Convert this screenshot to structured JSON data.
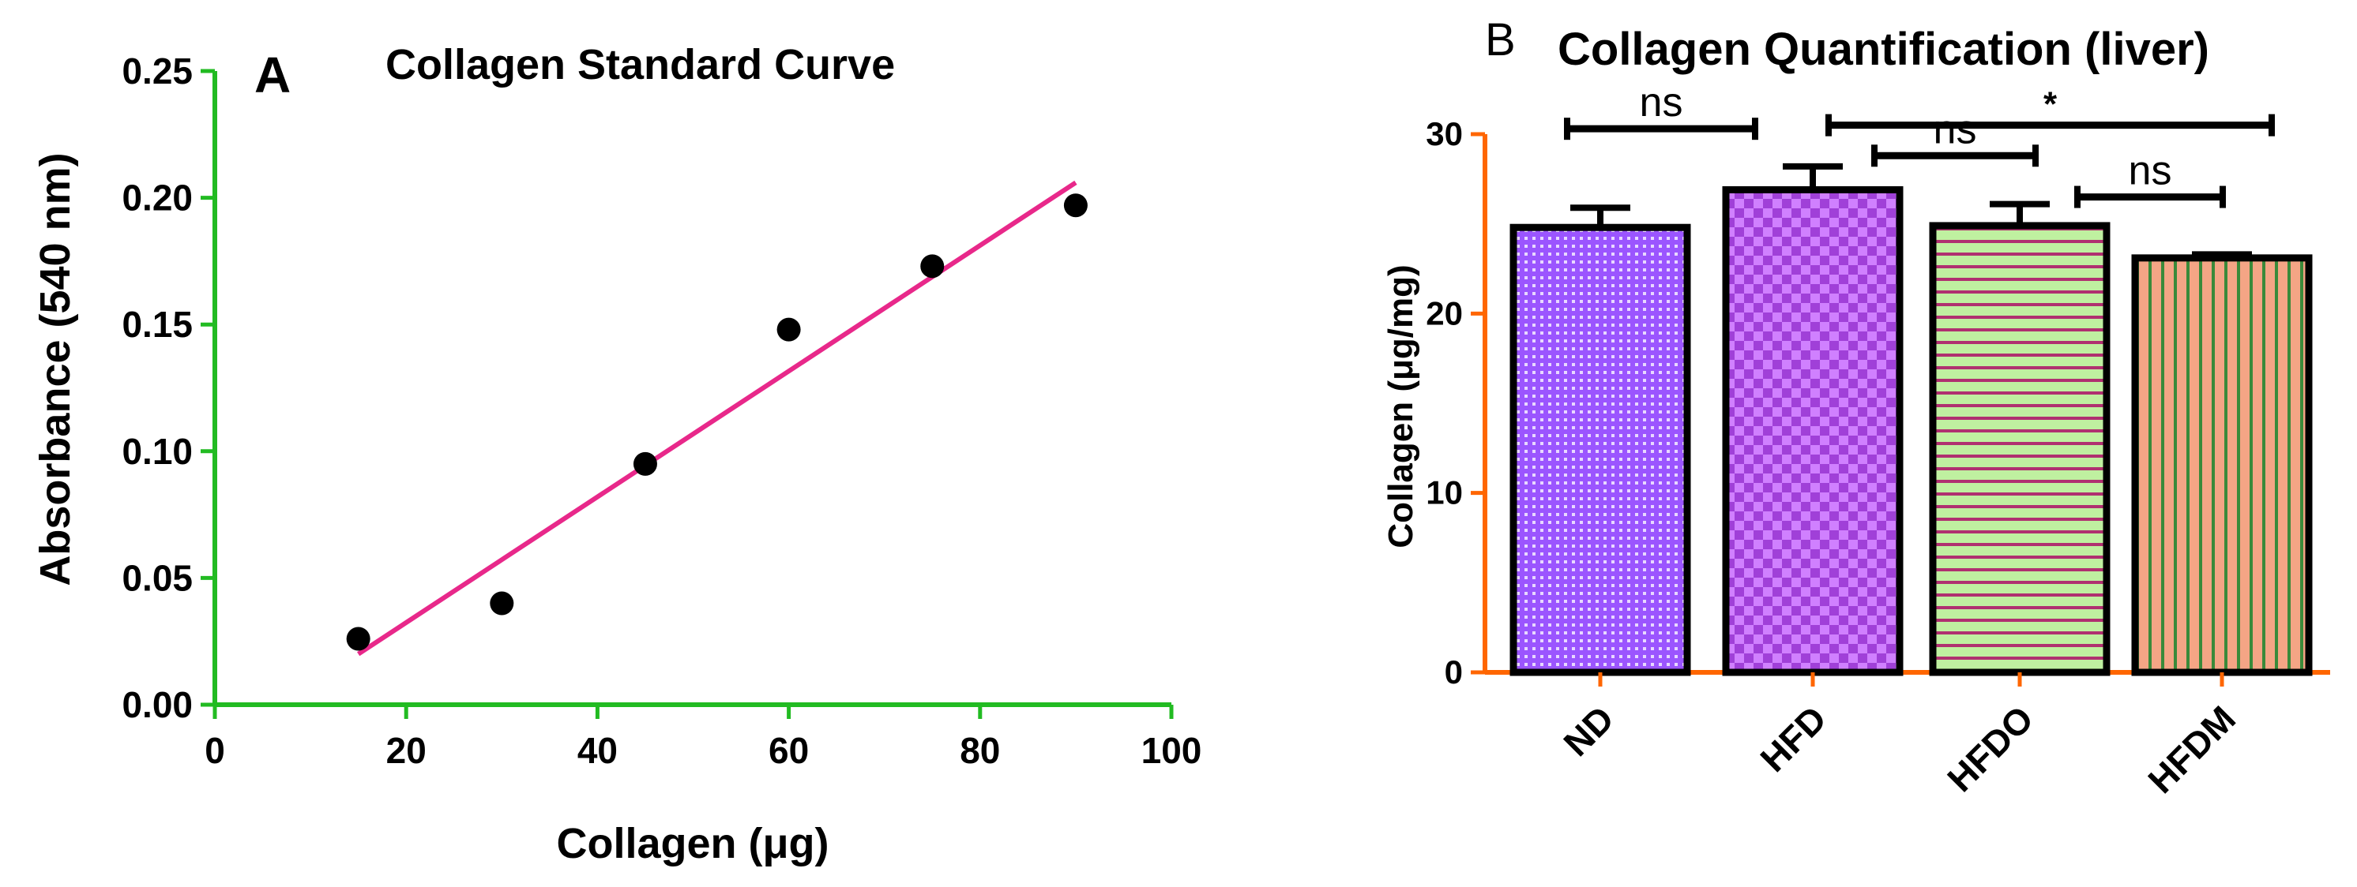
{
  "chart_data": [
    {
      "panel": "A",
      "type": "scatter",
      "title": "Collagen Standard Curve",
      "xlabel": "Collagen (μg)",
      "ylabel": "Absorbance  (540 nm)",
      "xlim": [
        0,
        100
      ],
      "ylim": [
        0,
        0.25
      ],
      "x_ticks": [
        "0",
        "20",
        "40",
        "60",
        "80",
        "100"
      ],
      "y_ticks": [
        "0.00",
        "0.05",
        "0.10",
        "0.15",
        "0.20",
        "0.25"
      ],
      "x": [
        15,
        30,
        45,
        60,
        75,
        90
      ],
      "y": [
        0.026,
        0.04,
        0.095,
        0.148,
        0.173,
        0.197
      ],
      "fit_line": {
        "x": [
          15,
          90
        ],
        "y": [
          0.02,
          0.206
        ]
      },
      "colors": {
        "axis": "#22bb22",
        "fit": "#e8288a",
        "points": "#000000"
      }
    },
    {
      "panel": "B",
      "type": "bar",
      "title": "Collagen Quantification (liver)",
      "xlabel": "",
      "ylabel": "Collagen (μg/mg)",
      "ylim": [
        0,
        30
      ],
      "y_ticks": [
        "0",
        "10",
        "20",
        "30"
      ],
      "categories": [
        "ND",
        "HFD",
        "HFDO",
        "HFDM"
      ],
      "values": [
        24.8,
        26.9,
        24.9,
        23.1
      ],
      "errors": [
        1.1,
        1.3,
        1.2,
        0.2
      ],
      "significance": [
        {
          "from": 0,
          "to": 1,
          "label": "ns",
          "y": 30.3
        },
        {
          "from": 1,
          "to": 3,
          "label": "*",
          "y": 30.5
        },
        {
          "from": 1,
          "to": 2,
          "label": "ns",
          "y": 28.8
        },
        {
          "from": 2,
          "to": 3,
          "label": "ns",
          "y": 26.5
        }
      ],
      "colors": {
        "axis": "#ff6600",
        "ND": "#9b55ff",
        "HFD": "#a040d8",
        "HFDO": "#bff0a0",
        "HFDM": "#f4a585"
      }
    }
  ]
}
